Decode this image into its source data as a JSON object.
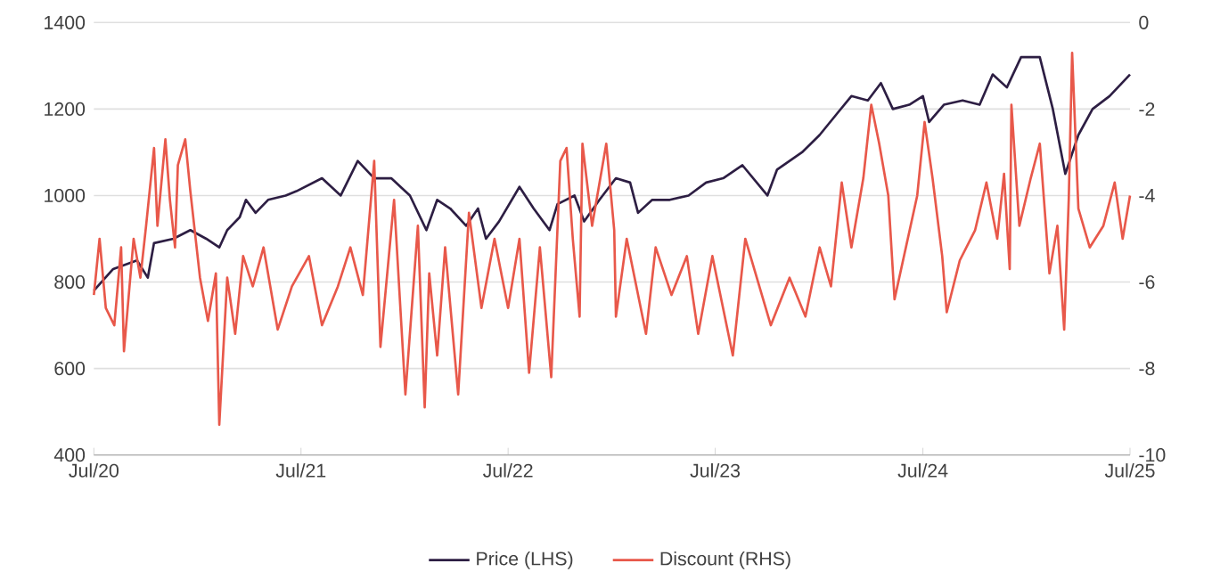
{
  "chart_data": {
    "type": "line",
    "xlim": [
      "2020-07",
      "2025-07"
    ],
    "xticks": [
      {
        "value": "2020-07",
        "label": "Jul/20"
      },
      {
        "value": "2021-07",
        "label": "Jul/21"
      },
      {
        "value": "2022-07",
        "label": "Jul/22"
      },
      {
        "value": "2023-07",
        "label": "Jul/23"
      },
      {
        "value": "2024-07",
        "label": "Jul/24"
      },
      {
        "value": "2025-07",
        "label": "Jul/25"
      }
    ],
    "ylim": [
      400,
      1400
    ],
    "yticks": [
      400,
      600,
      800,
      1000,
      1200,
      1400
    ],
    "y2lim": [
      -10,
      0
    ],
    "y2ticks": [
      -10,
      -8,
      -6,
      -4,
      -2,
      0
    ],
    "grid": "y",
    "legend": "bottom",
    "series": [
      {
        "name": "Price (LHS)",
        "color": "#2d1e43",
        "x": [
          "2020-07-01",
          "2020-08-04",
          "2020-09-15",
          "2020-10-04",
          "2020-10-15",
          "2020-11-18",
          "2020-12-18",
          "2021-01-15",
          "2021-02-07",
          "2021-02-21",
          "2021-03-15",
          "2021-03-26",
          "2021-04-12",
          "2021-05-04",
          "2021-06-04",
          "2021-06-23",
          "2021-08-07",
          "2021-09-09",
          "2021-10-09",
          "2021-11-07",
          "2021-12-07",
          "2022-01-09",
          "2022-02-07",
          "2022-02-26",
          "2022-03-21",
          "2022-04-18",
          "2022-05-09",
          "2022-05-23",
          "2022-06-15",
          "2022-07-21",
          "2022-08-15",
          "2022-09-12",
          "2022-09-26",
          "2022-10-26",
          "2022-11-12",
          "2022-12-09",
          "2023-01-07",
          "2023-02-01",
          "2023-02-15",
          "2023-03-12",
          "2023-04-12",
          "2023-05-15",
          "2023-06-15",
          "2023-07-15",
          "2023-08-18",
          "2023-10-01",
          "2023-10-18",
          "2023-12-01",
          "2024-01-01",
          "2024-02-01",
          "2024-02-26",
          "2024-03-26",
          "2024-04-18",
          "2024-05-09",
          "2024-06-07",
          "2024-07-01",
          "2024-07-12",
          "2024-08-07",
          "2024-09-09",
          "2024-10-09",
          "2024-11-01",
          "2024-11-26",
          "2024-12-21",
          "2025-01-23",
          "2025-02-15",
          "2025-03-09",
          "2025-04-01",
          "2025-04-26",
          "2025-05-26",
          "2025-07-01"
        ],
        "values": [
          780,
          830,
          850,
          810,
          890,
          900,
          920,
          900,
          880,
          920,
          950,
          990,
          960,
          990,
          1000,
          1010,
          1040,
          1000,
          1080,
          1040,
          1040,
          1000,
          920,
          990,
          970,
          930,
          970,
          900,
          940,
          1020,
          970,
          920,
          980,
          1000,
          940,
          990,
          1040,
          1030,
          960,
          990,
          990,
          1000,
          1030,
          1040,
          1070,
          1000,
          1060,
          1100,
          1140,
          1190,
          1230,
          1220,
          1260,
          1200,
          1210,
          1230,
          1170,
          1210,
          1220,
          1210,
          1280,
          1250,
          1320,
          1320,
          1200,
          1050,
          1140,
          1200,
          1230,
          1280
        ]
      },
      {
        "name": "Discount (RHS)",
        "color": "#e8584a",
        "axis": "y2",
        "x": [
          "2020-07-01",
          "2020-07-11",
          "2020-07-22",
          "2020-08-06",
          "2020-08-18",
          "2020-08-23",
          "2020-09-09",
          "2020-09-21",
          "2020-10-01",
          "2020-10-15",
          "2020-10-21",
          "2020-11-04",
          "2020-11-12",
          "2020-11-21",
          "2020-11-26",
          "2020-12-09",
          "2020-12-18",
          "2021-01-04",
          "2021-01-18",
          "2021-02-01",
          "2021-02-07",
          "2021-02-21",
          "2021-03-07",
          "2021-03-21",
          "2021-04-07",
          "2021-04-26",
          "2021-05-21",
          "2021-06-15",
          "2021-07-15",
          "2021-08-07",
          "2021-09-04",
          "2021-09-26",
          "2021-10-18",
          "2021-11-07",
          "2021-11-18",
          "2021-12-12",
          "2022-01-01",
          "2022-01-23",
          "2022-02-04",
          "2022-02-12",
          "2022-02-26",
          "2022-03-12",
          "2022-04-04",
          "2022-04-23",
          "2022-05-15",
          "2022-06-07",
          "2022-07-01",
          "2022-07-21",
          "2022-08-07",
          "2022-08-26",
          "2022-09-15",
          "2022-10-01",
          "2022-10-12",
          "2022-10-23",
          "2022-11-04",
          "2022-11-09",
          "2022-11-26",
          "2022-12-21",
          "2023-01-04",
          "2023-01-07",
          "2023-01-26",
          "2023-03-01",
          "2023-03-18",
          "2023-04-15",
          "2023-05-12",
          "2023-06-01",
          "2023-06-26",
          "2023-08-01",
          "2023-08-23",
          "2023-10-07",
          "2023-11-09",
          "2023-12-07",
          "2024-01-01",
          "2024-01-21",
          "2024-02-09",
          "2024-02-26",
          "2024-03-18",
          "2024-04-01",
          "2024-04-15",
          "2024-05-01",
          "2024-05-12",
          "2024-06-01",
          "2024-06-21",
          "2024-07-04",
          "2024-07-18",
          "2024-08-04",
          "2024-08-12",
          "2024-09-04",
          "2024-10-01",
          "2024-10-21",
          "2024-11-09",
          "2024-11-21",
          "2024-12-01",
          "2024-12-04",
          "2024-12-18",
          "2025-01-07",
          "2025-01-23",
          "2025-02-09",
          "2025-02-23",
          "2025-03-07",
          "2025-03-15",
          "2025-03-21",
          "2025-04-01",
          "2025-04-21",
          "2025-05-15",
          "2025-06-04",
          "2025-06-18",
          "2025-07-01"
        ],
        "values": [
          -6.3,
          -5.0,
          -6.6,
          -7.0,
          -5.2,
          -7.6,
          -5.0,
          -5.9,
          -4.7,
          -2.9,
          -4.7,
          -2.7,
          -4.1,
          -5.2,
          -3.3,
          -2.7,
          -3.9,
          -5.9,
          -6.9,
          -5.8,
          -9.3,
          -5.9,
          -7.2,
          -5.4,
          -6.1,
          -5.2,
          -7.1,
          -6.1,
          -5.4,
          -7.0,
          -6.1,
          -5.2,
          -6.3,
          -3.2,
          -7.5,
          -4.1,
          -8.6,
          -4.7,
          -8.9,
          -5.8,
          -7.7,
          -5.2,
          -8.6,
          -4.4,
          -6.6,
          -5.0,
          -6.6,
          -5.0,
          -8.1,
          -5.2,
          -8.2,
          -3.2,
          -2.9,
          -5.0,
          -6.8,
          -2.8,
          -4.7,
          -2.8,
          -4.8,
          -6.8,
          -5.0,
          -7.2,
          -5.2,
          -6.3,
          -5.4,
          -7.2,
          -5.4,
          -7.7,
          -5.0,
          -7.0,
          -5.9,
          -6.8,
          -5.2,
          -6.1,
          -3.7,
          -5.2,
          -3.6,
          -1.9,
          -2.8,
          -4.0,
          -6.4,
          -5.2,
          -4.0,
          -2.3,
          -3.6,
          -5.4,
          -6.7,
          -5.5,
          -4.8,
          -3.7,
          -5.0,
          -3.5,
          -5.7,
          -1.9,
          -4.7,
          -3.6,
          -2.8,
          -5.8,
          -4.7,
          -7.1,
          -4.1,
          -0.7,
          -4.3,
          -5.2,
          -4.7,
          -3.7,
          -5.0,
          -4.0
        ]
      }
    ]
  }
}
